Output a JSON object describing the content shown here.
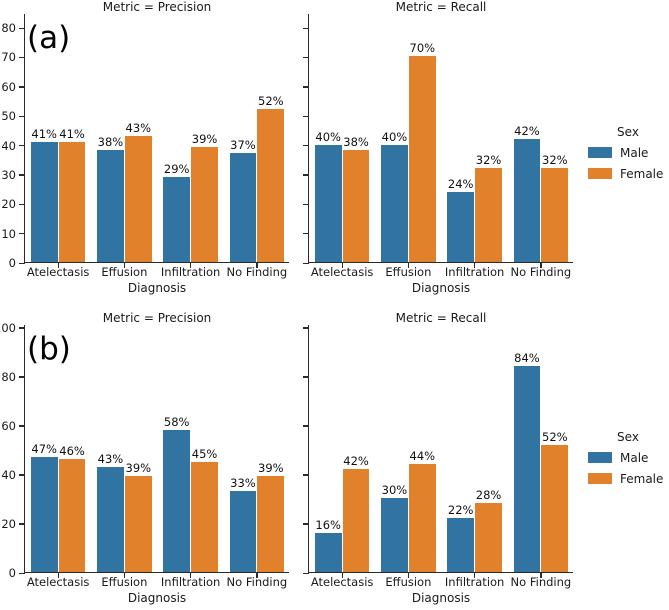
{
  "chart_data": {
    "type": "bar",
    "description": "Faceted grouped bar charts of Precision and Recall percentages by chest X-ray diagnosis, split by sex, for two experiments (a) and (b)",
    "categories": [
      "Atelectasis",
      "Effusion",
      "Infiltration",
      "No Finding"
    ],
    "xlabel": "Diagnosis",
    "row_labels": [
      "(a)",
      "(b)"
    ],
    "colors": {
      "male": "#3274a1",
      "female": "#e1812c"
    },
    "legend": {
      "title": "Sex",
      "position": "right of each row",
      "entries": [
        {
          "name": "Male",
          "color": "#3274a1"
        },
        {
          "name": "Female",
          "color": "#e1812c"
        }
      ]
    },
    "panels": [
      {
        "row": "a",
        "title": "Metric = Precision",
        "ylim": [
          0,
          84.8
        ],
        "yticks": [
          0,
          10,
          20,
          30,
          40,
          50,
          60,
          70,
          80
        ],
        "show_ytick_labels": true,
        "grid": false,
        "series": [
          {
            "name": "Male",
            "values": [
              41,
              38,
              29,
              37
            ]
          },
          {
            "name": "Female",
            "values": [
              41,
              43,
              39,
              52
            ]
          }
        ],
        "value_labels": [
          "41%",
          "38%",
          "29%",
          "37%",
          "41%",
          "43%",
          "39%",
          "52%"
        ]
      },
      {
        "row": "a",
        "title": "Metric = Recall",
        "ylim": [
          0,
          84.8
        ],
        "yticks": [
          0,
          10,
          20,
          30,
          40,
          50,
          60,
          70,
          80
        ],
        "show_ytick_labels": false,
        "grid": false,
        "series": [
          {
            "name": "Male",
            "values": [
              40,
              40,
              24,
              42
            ]
          },
          {
            "name": "Female",
            "values": [
              38,
              70,
              32,
              32
            ]
          }
        ],
        "value_labels": [
          "40%",
          "40%",
          "24%",
          "42%",
          "38%",
          "70%",
          "32%",
          "32%"
        ]
      },
      {
        "row": "b",
        "title": "Metric = Precision",
        "ylim": [
          0,
          101.2
        ],
        "yticks": [
          0,
          20,
          40,
          60,
          80,
          100
        ],
        "show_ytick_labels": true,
        "grid": false,
        "series": [
          {
            "name": "Male",
            "values": [
              47,
              43,
              58,
              33
            ]
          },
          {
            "name": "Female",
            "values": [
              46,
              39,
              45,
              39
            ]
          }
        ],
        "value_labels": [
          "47%",
          "43%",
          "58%",
          "33%",
          "46%",
          "39%",
          "45%",
          "39%"
        ]
      },
      {
        "row": "b",
        "title": "Metric = Recall",
        "ylim": [
          0,
          101.2
        ],
        "yticks": [
          0,
          20,
          40,
          60,
          80,
          100
        ],
        "show_ytick_labels": false,
        "grid": false,
        "series": [
          {
            "name": "Male",
            "values": [
              16,
              30,
              22,
              84
            ]
          },
          {
            "name": "Female",
            "values": [
              42,
              44,
              28,
              52
            ]
          }
        ],
        "value_labels": [
          "16%",
          "30%",
          "22%",
          "84%",
          "42%",
          "44%",
          "28%",
          "52%"
        ]
      }
    ]
  }
}
